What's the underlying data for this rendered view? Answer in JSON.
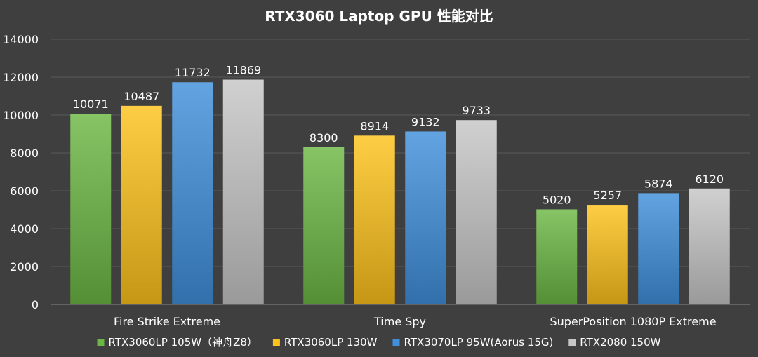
{
  "chart_data": {
    "type": "bar",
    "title": "RTX3060 Laptop GPU 性能对比",
    "xlabel": "",
    "ylabel": "",
    "ylim": [
      0,
      14000
    ],
    "yticks": [
      0,
      2000,
      4000,
      6000,
      8000,
      10000,
      12000,
      14000
    ],
    "grid": true,
    "legend_position": "bottom",
    "categories": [
      "Fire Strike Extreme",
      "Time Spy",
      "SuperPosition 1080P Extreme"
    ],
    "series": [
      {
        "name": "RTX3060LP 105W（神舟Z8）",
        "values": [
          10071,
          8300,
          5020
        ],
        "color": "#6cb744"
      },
      {
        "name": "RTX3060LP 130W",
        "values": [
          10487,
          8914,
          5257
        ],
        "color": "#fcc21b"
      },
      {
        "name": "RTX3070LP 95W(Aorus 15G)",
        "values": [
          11732,
          9132,
          5874
        ],
        "color": "#3f8fdb"
      },
      {
        "name": "RTX2080 150W",
        "values": [
          11869,
          9733,
          6120
        ],
        "color": "#c6c6c6"
      }
    ]
  }
}
